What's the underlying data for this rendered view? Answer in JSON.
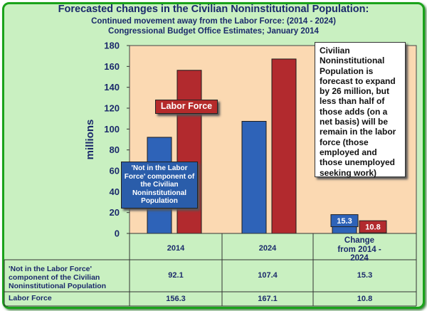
{
  "title": "Forecasted changes in the Civilian Noninstitutional Population:",
  "subtitle1": "Continued movement away from the Labor Force: (2014 - 2024)",
  "subtitle2": "Congressional Budget Office Estimates; January 2014",
  "note": "Civilian Noninstitutional Population is forecast to expand by 26 million, but less than half of those adds (on a net basis) will be remain in the labor force (those employed and those unemployed seeking work)",
  "callout_labor_force": "Labor Force",
  "callout_nilf": "'Not in the Labor Force' component of the Civilian Noninstitutional Population",
  "colors": {
    "nilf": "#2e63b8",
    "labor_force": "#b22a2e",
    "plot_bg": "#fbd9b2",
    "frame_bg": "#c9f0c1"
  },
  "chart_data": {
    "type": "bar",
    "ylabel": "millions",
    "ylim": [
      0,
      180
    ],
    "yticks": [
      0,
      20,
      40,
      60,
      80,
      100,
      120,
      140,
      160,
      180
    ],
    "grid": false,
    "categories": [
      "2014",
      "2024",
      "Change from 2014 - 2024"
    ],
    "series": [
      {
        "name": "'Not in the Labor Force' component of the Civilian Noninstitutional Population",
        "values": [
          92.1,
          107.4,
          15.3
        ]
      },
      {
        "name": "Labor Force",
        "values": [
          156.3,
          167.1,
          10.8
        ]
      }
    ],
    "data_labels": [
      "15.3",
      "10.8"
    ]
  },
  "table": {
    "rows": [
      {
        "label": "'Not in the Labor Force' component of the Civilian Noninstitutional Population",
        "values": [
          "92.1",
          "107.4",
          "15.3"
        ]
      },
      {
        "label": "Labor Force",
        "values": [
          "156.3",
          "167.1",
          "10.8"
        ]
      }
    ]
  }
}
